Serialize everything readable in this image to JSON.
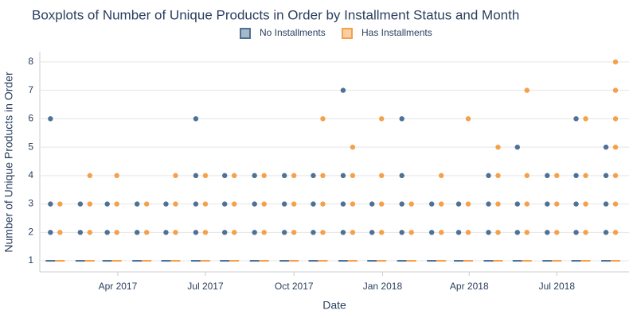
{
  "chart_data": {
    "type": "boxplot",
    "title": "Boxplots of Number of Unique Products in Order by Installment Status and Month",
    "x_label": "Date",
    "y_label": "Number of Unique Products in Order",
    "x": [
      "2017-01",
      "2017-02",
      "2017-03",
      "2017-04",
      "2017-05",
      "2017-06",
      "2017-07",
      "2017-08",
      "2017-09",
      "2017-10",
      "2017-11",
      "2017-12",
      "2018-01",
      "2018-02",
      "2018-03",
      "2018-04",
      "2018-05",
      "2018-06",
      "2018-07",
      "2018-08"
    ],
    "xlim": [
      "2017-01-10",
      "2018-09-14"
    ],
    "xticks": [
      {
        "value": "2017-04-01",
        "label": "Apr 2017"
      },
      {
        "value": "2017-07-01",
        "label": "Jul 2017"
      },
      {
        "value": "2017-10-01",
        "label": "Oct 2017"
      },
      {
        "value": "2018-01-01",
        "label": "Jan 2018"
      },
      {
        "value": "2018-04-01",
        "label": "Apr 2018"
      },
      {
        "value": "2018-07-01",
        "label": "Jul 2018"
      }
    ],
    "ylim": [
      0.61,
      8.36
    ],
    "yticks": [
      1,
      2,
      3,
      4,
      5,
      6,
      7,
      8
    ],
    "grid": true,
    "series": [
      {
        "name": "No Installments",
        "color": "#4e7196",
        "q1": [
          1,
          1,
          1,
          1,
          1,
          1,
          1,
          1,
          1,
          1,
          1,
          1,
          1,
          1,
          1,
          1,
          1,
          1,
          1,
          1
        ],
        "median": [
          1,
          1,
          1,
          1,
          1,
          1,
          1,
          1,
          1,
          1,
          1,
          1,
          1,
          1,
          1,
          1,
          1,
          1,
          1,
          1
        ],
        "q3": [
          1,
          1,
          1,
          1,
          1,
          1,
          1,
          1,
          1,
          1,
          1,
          1,
          1,
          1,
          1,
          1,
          1,
          1,
          1,
          1
        ],
        "outliers": [
          [
            2,
            3,
            6
          ],
          [
            2,
            3
          ],
          [
            2,
            3
          ],
          [
            2,
            3
          ],
          [
            2,
            3
          ],
          [
            2,
            3,
            4,
            6
          ],
          [
            2,
            3,
            4
          ],
          [
            2,
            3,
            4
          ],
          [
            2,
            3,
            4
          ],
          [
            2,
            3,
            4
          ],
          [
            2,
            3,
            4,
            7
          ],
          [
            2,
            3
          ],
          [
            2,
            3,
            4,
            6
          ],
          [
            2,
            3
          ],
          [
            2,
            3
          ],
          [
            2,
            3,
            4
          ],
          [
            2,
            3,
            5
          ],
          [
            2,
            3,
            4
          ],
          [
            2,
            3,
            4,
            6
          ],
          [
            2,
            3,
            4,
            5
          ]
        ]
      },
      {
        "name": "Has Installments",
        "color": "#f5a04a",
        "q1": [
          1,
          1,
          1,
          1,
          1,
          1,
          1,
          1,
          1,
          1,
          1,
          1,
          1,
          1,
          1,
          1,
          1,
          1,
          1,
          1
        ],
        "median": [
          1,
          1,
          1,
          1,
          1,
          1,
          1,
          1,
          1,
          1,
          1,
          1,
          1,
          1,
          1,
          1,
          1,
          1,
          1,
          1
        ],
        "q3": [
          1,
          1,
          1,
          1,
          1,
          1,
          1,
          1,
          1,
          1,
          1,
          1,
          1,
          1,
          1,
          1,
          1,
          1,
          1,
          1
        ],
        "outliers": [
          [
            2,
            3
          ],
          [
            2,
            3,
            4
          ],
          [
            2,
            3,
            4
          ],
          [
            2,
            3
          ],
          [
            2,
            3,
            4
          ],
          [
            2,
            3,
            4
          ],
          [
            2,
            3,
            4
          ],
          [
            2,
            3,
            4
          ],
          [
            2,
            3,
            4
          ],
          [
            2,
            3,
            4,
            6
          ],
          [
            2,
            3,
            4,
            5
          ],
          [
            2,
            3,
            4,
            6
          ],
          [
            2,
            3
          ],
          [
            2,
            3,
            4
          ],
          [
            2,
            3,
            6
          ],
          [
            2,
            3,
            4,
            5
          ],
          [
            2,
            3,
            4,
            7
          ],
          [
            2,
            3,
            4
          ],
          [
            2,
            3,
            4,
            6
          ],
          [
            2,
            3,
            4,
            5,
            6,
            7,
            8
          ]
        ]
      }
    ]
  }
}
